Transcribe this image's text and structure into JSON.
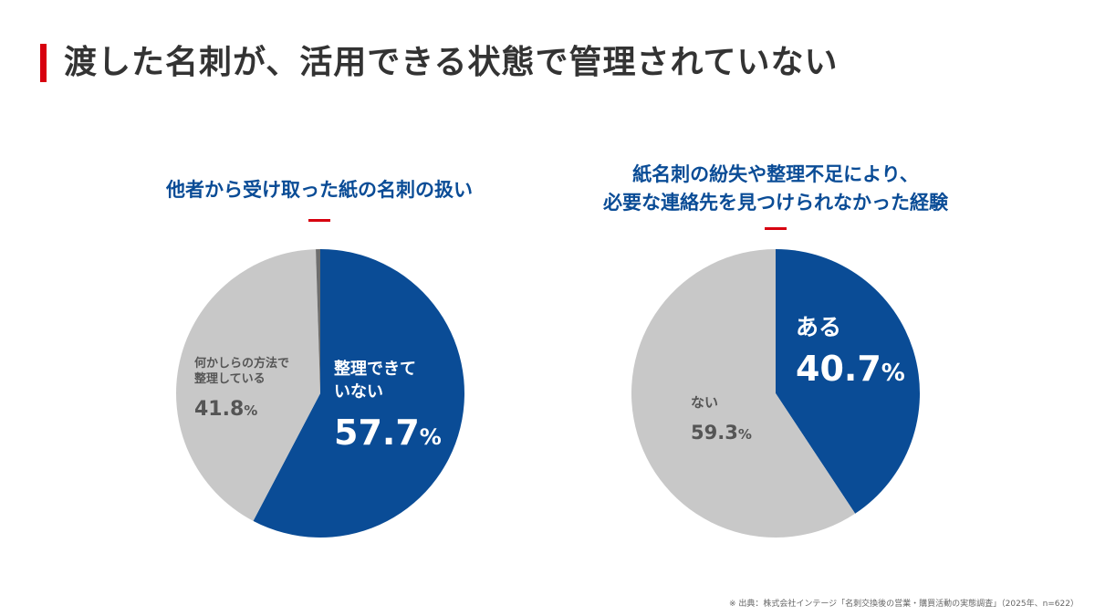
{
  "page_title": "渡した名刺が、活用できる状態で管理されていない",
  "source_note": "※ 出典：株式会社インテージ「名刺交換後の営業・購買活動の実態調査」（2025年、n=622）",
  "colors": {
    "accent_red": "#d7000f",
    "blue": "#0a4c96",
    "light_gray": "#c8c8c8",
    "dark_gray": "#6e6e6e",
    "text_gray": "#555555"
  },
  "chart_data": [
    {
      "type": "pie",
      "title": "他者から受け取った紙の名刺の扱い",
      "slices": [
        {
          "label_lines": [
            "整理できて",
            "いない"
          ],
          "value": 57.7,
          "display": "57.7",
          "color": "#0a4c96",
          "text_color": "#ffffff"
        },
        {
          "label_lines": [
            "何かしらの方法で",
            "整理している"
          ],
          "value": 41.8,
          "display": "41.8",
          "color": "#c8c8c8",
          "text_color": "#555555"
        },
        {
          "label_lines": [],
          "value": 0.5,
          "display": "",
          "color": "#6e6e6e",
          "text_color": "#555555"
        }
      ],
      "unit": "%"
    },
    {
      "type": "pie",
      "title": "紙名刺の紛失や整理不足により、\n必要な連絡先を見つけられなかった経験",
      "title_lines": [
        "紙名刺の紛失や整理不足により、",
        "必要な連絡先を見つけられなかった経験"
      ],
      "slices": [
        {
          "label_lines": [
            "ある"
          ],
          "value": 40.7,
          "display": "40.7",
          "color": "#0a4c96",
          "text_color": "#ffffff"
        },
        {
          "label_lines": [
            "ない"
          ],
          "value": 59.3,
          "display": "59.3",
          "color": "#c8c8c8",
          "text_color": "#555555"
        }
      ],
      "unit": "%"
    }
  ]
}
